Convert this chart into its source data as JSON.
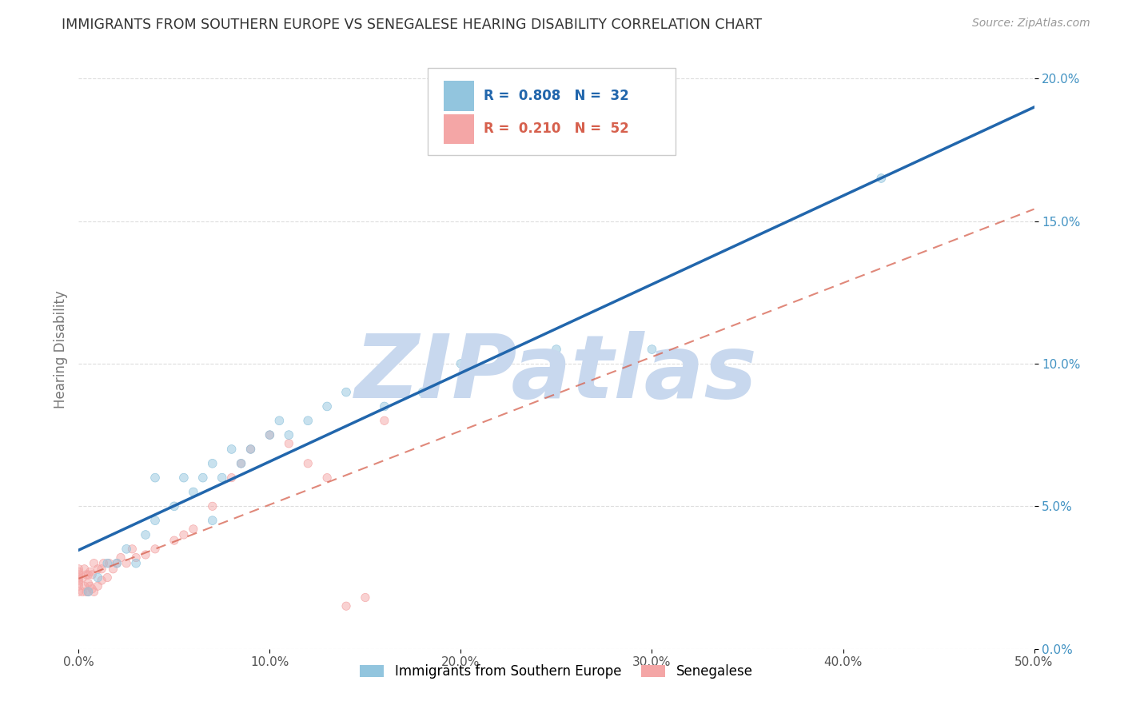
{
  "title": "IMMIGRANTS FROM SOUTHERN EUROPE VS SENEGALESE HEARING DISABILITY CORRELATION CHART",
  "source": "Source: ZipAtlas.com",
  "ylabel": "Hearing Disability",
  "watermark": "ZIPatlas",
  "xlim": [
    0.0,
    0.5
  ],
  "ylim": [
    0.0,
    0.21
  ],
  "xticks": [
    0.0,
    0.1,
    0.2,
    0.3,
    0.4,
    0.5
  ],
  "yticks": [
    0.0,
    0.05,
    0.1,
    0.15,
    0.2
  ],
  "blue_R": 0.808,
  "blue_N": 32,
  "pink_R": 0.21,
  "pink_N": 52,
  "blue_scatter_x": [
    0.005,
    0.01,
    0.015,
    0.02,
    0.025,
    0.03,
    0.035,
    0.04,
    0.04,
    0.05,
    0.055,
    0.06,
    0.065,
    0.07,
    0.07,
    0.075,
    0.08,
    0.085,
    0.09,
    0.1,
    0.105,
    0.11,
    0.12,
    0.13,
    0.14,
    0.16,
    0.18,
    0.2,
    0.22,
    0.25,
    0.3,
    0.42
  ],
  "blue_scatter_y": [
    0.02,
    0.025,
    0.03,
    0.03,
    0.035,
    0.03,
    0.04,
    0.045,
    0.06,
    0.05,
    0.06,
    0.055,
    0.06,
    0.045,
    0.065,
    0.06,
    0.07,
    0.065,
    0.07,
    0.075,
    0.08,
    0.075,
    0.08,
    0.085,
    0.09,
    0.085,
    0.09,
    0.1,
    0.1,
    0.105,
    0.105,
    0.165
  ],
  "pink_scatter_x": [
    0.0,
    0.0,
    0.0,
    0.0,
    0.0,
    0.0,
    0.0,
    0.0,
    0.002,
    0.002,
    0.003,
    0.003,
    0.004,
    0.004,
    0.005,
    0.005,
    0.005,
    0.006,
    0.006,
    0.007,
    0.007,
    0.008,
    0.008,
    0.01,
    0.01,
    0.012,
    0.012,
    0.013,
    0.015,
    0.016,
    0.018,
    0.02,
    0.022,
    0.025,
    0.028,
    0.03,
    0.035,
    0.04,
    0.05,
    0.055,
    0.06,
    0.07,
    0.08,
    0.085,
    0.09,
    0.1,
    0.11,
    0.12,
    0.13,
    0.14,
    0.15,
    0.16
  ],
  "pink_scatter_y": [
    0.02,
    0.022,
    0.023,
    0.024,
    0.025,
    0.026,
    0.027,
    0.028,
    0.02,
    0.025,
    0.022,
    0.028,
    0.02,
    0.026,
    0.02,
    0.023,
    0.026,
    0.022,
    0.027,
    0.021,
    0.026,
    0.02,
    0.03,
    0.022,
    0.028,
    0.024,
    0.028,
    0.03,
    0.025,
    0.03,
    0.028,
    0.03,
    0.032,
    0.03,
    0.035,
    0.032,
    0.033,
    0.035,
    0.038,
    0.04,
    0.042,
    0.05,
    0.06,
    0.065,
    0.07,
    0.075,
    0.072,
    0.065,
    0.06,
    0.015,
    0.018,
    0.08
  ],
  "blue_color": "#92c5de",
  "pink_color": "#f4a6a6",
  "blue_line_color": "#2166ac",
  "pink_line_color": "#d6604d",
  "watermark_color": "#c8d8ee",
  "bg_color": "#ffffff",
  "grid_color": "#dddddd",
  "ytick_color": "#4393c3",
  "xtick_color": "#555555"
}
